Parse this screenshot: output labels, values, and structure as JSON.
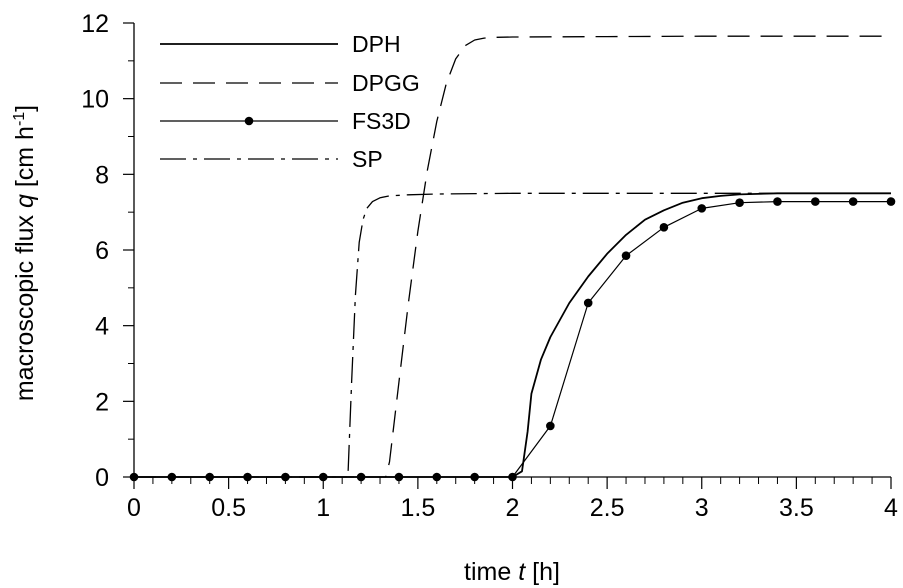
{
  "chart_data": {
    "type": "line",
    "title": "",
    "xlabel": {
      "prefix": "time ",
      "var": "t",
      "suffix": " [h]"
    },
    "ylabel": {
      "prefix": "macroscopic flux ",
      "var": "q",
      "suffix": " [cm h",
      "sup": "-1",
      "end": "]"
    },
    "xlim": [
      0,
      4
    ],
    "ylim": [
      0,
      12
    ],
    "xticks": [
      0,
      0.5,
      1,
      1.5,
      2,
      2.5,
      3,
      3.5,
      4
    ],
    "xtick_labels": [
      "0",
      "0.5",
      "1",
      "1.5",
      "2",
      "2.5",
      "3",
      "3.5",
      "4"
    ],
    "yticks": [
      0,
      2,
      4,
      6,
      8,
      10,
      12
    ],
    "ytick_labels": [
      "0",
      "2",
      "4",
      "6",
      "8",
      "10",
      "12"
    ],
    "grid": false,
    "legend_position": "top-left",
    "series": [
      {
        "name": "DPH",
        "style": "solid",
        "color": "#000000",
        "x": [
          0,
          2.0,
          2.05,
          2.08,
          2.1,
          2.15,
          2.2,
          2.3,
          2.4,
          2.5,
          2.6,
          2.7,
          2.8,
          2.9,
          3.0,
          3.1,
          3.2,
          3.4,
          3.6,
          3.8,
          4.0
        ],
        "y": [
          0,
          0,
          0.15,
          1.2,
          2.2,
          3.1,
          3.7,
          4.6,
          5.3,
          5.9,
          6.4,
          6.8,
          7.05,
          7.25,
          7.37,
          7.43,
          7.47,
          7.5,
          7.5,
          7.5,
          7.5
        ]
      },
      {
        "name": "DPGG",
        "style": "dashed",
        "color": "#000000",
        "x": [
          0,
          1.33,
          1.35,
          1.4,
          1.45,
          1.5,
          1.55,
          1.6,
          1.65,
          1.7,
          1.75,
          1.8,
          1.85,
          1.9,
          2.0,
          2.5,
          3.0,
          3.5,
          4.0
        ],
        "y": [
          0,
          0,
          0.4,
          2.5,
          4.6,
          6.5,
          8.1,
          9.4,
          10.4,
          11.05,
          11.4,
          11.55,
          11.6,
          11.62,
          11.63,
          11.64,
          11.65,
          11.65,
          11.65
        ]
      },
      {
        "name": "FS3D",
        "style": "solid-markers",
        "color": "#000000",
        "x": [
          0,
          0.2,
          0.4,
          0.6,
          0.8,
          1.0,
          1.2,
          1.4,
          1.6,
          1.8,
          2.0,
          2.2,
          2.4,
          2.6,
          2.8,
          3.0,
          3.2,
          3.4,
          3.6,
          3.8,
          4.0
        ],
        "y": [
          0,
          0,
          0,
          0,
          0,
          0,
          0,
          0,
          0,
          0,
          0,
          1.35,
          4.6,
          5.85,
          6.6,
          7.1,
          7.25,
          7.28,
          7.28,
          7.28,
          7.28
        ]
      },
      {
        "name": "SP",
        "style": "dashdot",
        "color": "#000000",
        "x": [
          0,
          1.13,
          1.15,
          1.17,
          1.19,
          1.21,
          1.23,
          1.26,
          1.3,
          1.35,
          1.45,
          1.6,
          2.0,
          3.0,
          4.0
        ],
        "y": [
          0,
          0,
          2.5,
          4.8,
          6.2,
          6.8,
          7.1,
          7.28,
          7.38,
          7.43,
          7.46,
          7.48,
          7.5,
          7.5,
          7.5
        ]
      }
    ]
  }
}
